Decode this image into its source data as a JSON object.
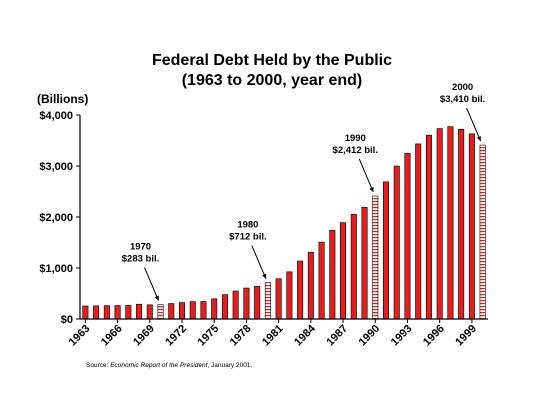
{
  "title_line1": "Federal Debt Held by the Public",
  "title_line2": "(1963 to 2000, year end)",
  "source_prefix": "Source: ",
  "source_title": "Economic Report of the President",
  "source_suffix": ", January 2001.",
  "colors": {
    "bar": "#e41e1e",
    "bar_outline": "#000000",
    "highlight_fill": "#ffffff",
    "highlight_stripe": "#e41e1e",
    "grid": "#9a9a9a"
  },
  "chart_data": {
    "type": "bar",
    "ylabel": "(Billions)",
    "xlabel": "",
    "ylim": [
      0,
      4000
    ],
    "ytick_values": [
      0,
      1000,
      2000,
      3000,
      4000
    ],
    "ytick_labels": [
      "$0",
      "$1,000",
      "$2,000",
      "$3,000",
      "$4,000"
    ],
    "grid": false,
    "categories": [
      1963,
      1964,
      1965,
      1966,
      1967,
      1968,
      1969,
      1970,
      1971,
      1972,
      1973,
      1974,
      1975,
      1976,
      1977,
      1978,
      1979,
      1980,
      1981,
      1982,
      1983,
      1984,
      1985,
      1986,
      1987,
      1988,
      1989,
      1990,
      1991,
      1992,
      1993,
      1994,
      1995,
      1996,
      1997,
      1998,
      1999,
      2000
    ],
    "xtick_labels": [
      "1963",
      "1966",
      "1969",
      "1972",
      "1975",
      "1978",
      "1981",
      "1984",
      "1987",
      "1990",
      "1993",
      "1996",
      "1999"
    ],
    "values": [
      255,
      258,
      262,
      264,
      267,
      290,
      278,
      283,
      303,
      322,
      341,
      344,
      395,
      477,
      549,
      607,
      640,
      712,
      789,
      925,
      1137,
      1307,
      1507,
      1741,
      1890,
      2052,
      2191,
      2412,
      2689,
      2999,
      3248,
      3433,
      3604,
      3734,
      3772,
      3721,
      3632,
      3410
    ],
    "highlighted": [
      1970,
      1980,
      1990,
      2000
    ],
    "annotations": [
      {
        "year": 1970,
        "line1": "1970",
        "line2": "$283 bil."
      },
      {
        "year": 1980,
        "line1": "1980",
        "line2": "$712 bil."
      },
      {
        "year": 1990,
        "line1": "1990",
        "line2": "$2,412 bil."
      },
      {
        "year": 2000,
        "line1": "2000",
        "line2": "$3,410 bil."
      }
    ]
  }
}
